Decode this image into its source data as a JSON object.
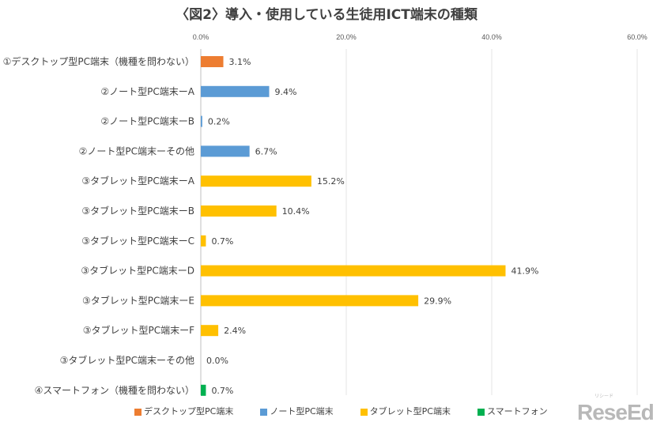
{
  "chart_data": {
    "type": "bar",
    "orientation": "horizontal",
    "title": "〈図2〉導入・使用している生徒用ICT端末の種類",
    "xlim": [
      0,
      60
    ],
    "xticks": [
      "0.0%",
      "20.0%",
      "40.0%",
      "60.0%"
    ],
    "xtick_values": [
      0,
      20,
      40,
      60
    ],
    "axis_position": "top",
    "grid": true,
    "legend_position": "bottom",
    "categories": [
      "①デスクトップ型PC端末（機種を問わない）",
      "②ノート型PC端末ーA",
      "②ノート型PC端末ーB",
      "②ノート型PC端末ーその他",
      "③タブレット型PC端末ーA",
      "③タブレット型PC端末ーB",
      "③タブレット型PC端末ーC",
      "③タブレット型PC端末ーD",
      "③タブレット型PC端末ーE",
      "③タブレット型PC端末ーF",
      "③タブレット型PC端末ーその他",
      "④スマートフォン（機種を問わない）"
    ],
    "values": [
      3.1,
      9.4,
      0.2,
      6.7,
      15.2,
      10.4,
      0.7,
      41.9,
      29.9,
      2.4,
      0.0,
      0.7
    ],
    "data_labels": [
      "3.1%",
      "9.4%",
      "0.2%",
      "6.7%",
      "15.2%",
      "10.4%",
      "0.7%",
      "41.9%",
      "29.9%",
      "2.4%",
      "0.0%",
      "0.7%"
    ],
    "groups": [
      0,
      1,
      1,
      1,
      2,
      2,
      2,
      2,
      2,
      2,
      2,
      3
    ],
    "legend": [
      {
        "name": "デスクトップ型PC端末",
        "color": "#ED7D31"
      },
      {
        "name": "ノート型PC端末",
        "color": "#5B9BD5"
      },
      {
        "name": "タブレット型PC端末",
        "color": "#FFC000"
      },
      {
        "name": "スマートフォン",
        "color": "#00B050"
      }
    ]
  },
  "logo": {
    "text": "ReseEd",
    "sub": "リシード"
  }
}
